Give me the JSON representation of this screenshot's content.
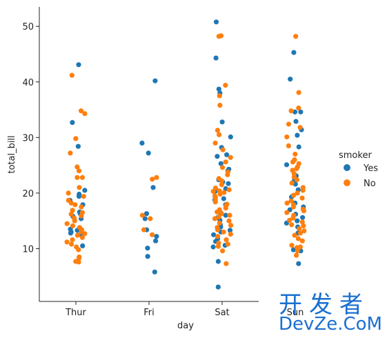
{
  "chart_data": {
    "type": "scatter",
    "subtype": "strip",
    "xlabel": "day",
    "ylabel": "total_bill",
    "categories": [
      "Thur",
      "Fri",
      "Sat",
      "Sun"
    ],
    "ylim": [
      0.5,
      53.5
    ],
    "yticks": [
      10,
      20,
      30,
      40,
      50
    ],
    "grid": false,
    "legend": {
      "title": "smoker",
      "placement": "right"
    },
    "colors": {
      "Yes": "#1f77b4",
      "No": "#ff7f0e"
    },
    "series": [
      {
        "name": "Yes",
        "points": [
          [
            "Thur",
            43.1
          ],
          [
            "Thur",
            32.7
          ],
          [
            "Thur",
            28.4
          ],
          [
            "Thur",
            20.5
          ],
          [
            "Thur",
            19.8
          ],
          [
            "Thur",
            19.4
          ],
          [
            "Thur",
            18.7
          ],
          [
            "Thur",
            17.9
          ],
          [
            "Thur",
            16.6
          ],
          [
            "Thur",
            16.4
          ],
          [
            "Thur",
            16.3
          ],
          [
            "Thur",
            15.8
          ],
          [
            "Thur",
            15.4
          ],
          [
            "Thur",
            13.5
          ],
          [
            "Thur",
            13.3
          ],
          [
            "Thur",
            13.0
          ],
          [
            "Thur",
            12.8
          ],
          [
            "Thur",
            12.5
          ],
          [
            "Thur",
            10.5
          ],
          [
            "Fri",
            40.2
          ],
          [
            "Fri",
            29.0
          ],
          [
            "Fri",
            27.2
          ],
          [
            "Fri",
            21.0
          ],
          [
            "Fri",
            16.3
          ],
          [
            "Fri",
            15.4
          ],
          [
            "Fri",
            13.4
          ],
          [
            "Fri",
            12.2
          ],
          [
            "Fri",
            11.4
          ],
          [
            "Fri",
            10.1
          ],
          [
            "Fri",
            8.6
          ],
          [
            "Fri",
            5.8
          ],
          [
            "Sat",
            50.8
          ],
          [
            "Sat",
            44.3
          ],
          [
            "Sat",
            38.7
          ],
          [
            "Sat",
            38.0
          ],
          [
            "Sat",
            32.8
          ],
          [
            "Sat",
            30.1
          ],
          [
            "Sat",
            28.2
          ],
          [
            "Sat",
            26.9
          ],
          [
            "Sat",
            26.6
          ],
          [
            "Sat",
            25.3
          ],
          [
            "Sat",
            24.3
          ],
          [
            "Sat",
            24.0
          ],
          [
            "Sat",
            22.4
          ],
          [
            "Sat",
            22.0
          ],
          [
            "Sat",
            21.7
          ],
          [
            "Sat",
            20.8
          ],
          [
            "Sat",
            20.3
          ],
          [
            "Sat",
            19.0
          ],
          [
            "Sat",
            18.8
          ],
          [
            "Sat",
            17.9
          ],
          [
            "Sat",
            16.5
          ],
          [
            "Sat",
            16.0
          ],
          [
            "Sat",
            15.6
          ],
          [
            "Sat",
            15.1
          ],
          [
            "Sat",
            14.3
          ],
          [
            "Sat",
            13.9
          ],
          [
            "Sat",
            13.3
          ],
          [
            "Sat",
            13.0
          ],
          [
            "Sat",
            12.5
          ],
          [
            "Sat",
            11.8
          ],
          [
            "Sat",
            11.3
          ],
          [
            "Sat",
            10.6
          ],
          [
            "Sat",
            10.3
          ],
          [
            "Sat",
            7.7
          ],
          [
            "Sat",
            3.1
          ],
          [
            "Sun",
            45.3
          ],
          [
            "Sun",
            40.5
          ],
          [
            "Sun",
            34.6
          ],
          [
            "Sun",
            34.6
          ],
          [
            "Sun",
            32.9
          ],
          [
            "Sun",
            31.4
          ],
          [
            "Sun",
            30.4
          ],
          [
            "Sun",
            28.3
          ],
          [
            "Sun",
            25.1
          ],
          [
            "Sun",
            23.1
          ],
          [
            "Sun",
            22.3
          ],
          [
            "Sun",
            21.6
          ],
          [
            "Sun",
            20.6
          ],
          [
            "Sun",
            19.3
          ],
          [
            "Sun",
            18.2
          ],
          [
            "Sun",
            17.5
          ],
          [
            "Sun",
            17.0
          ],
          [
            "Sun",
            16.2
          ],
          [
            "Sun",
            15.6
          ],
          [
            "Sun",
            15.0
          ],
          [
            "Sun",
            14.6
          ],
          [
            "Sun",
            13.9
          ],
          [
            "Sun",
            12.8
          ],
          [
            "Sun",
            9.8
          ],
          [
            "Sun",
            9.6
          ],
          [
            "Sun",
            7.3
          ]
        ]
      },
      {
        "name": "No",
        "points": [
          [
            "Thur",
            41.2
          ],
          [
            "Thur",
            34.8
          ],
          [
            "Thur",
            34.3
          ],
          [
            "Thur",
            29.8
          ],
          [
            "Thur",
            27.2
          ],
          [
            "Thur",
            24.7
          ],
          [
            "Thur",
            24.0
          ],
          [
            "Thur",
            22.8
          ],
          [
            "Thur",
            22.8
          ],
          [
            "Thur",
            21.0
          ],
          [
            "Thur",
            20.0
          ],
          [
            "Thur",
            19.4
          ],
          [
            "Thur",
            18.7
          ],
          [
            "Thur",
            18.2
          ],
          [
            "Thur",
            17.9
          ],
          [
            "Thur",
            17.5
          ],
          [
            "Thur",
            16.9
          ],
          [
            "Thur",
            16.5
          ],
          [
            "Thur",
            16.2
          ],
          [
            "Thur",
            15.9
          ],
          [
            "Thur",
            15.5
          ],
          [
            "Thur",
            15.0
          ],
          [
            "Thur",
            14.5
          ],
          [
            "Thur",
            14.1
          ],
          [
            "Thur",
            13.8
          ],
          [
            "Thur",
            13.4
          ],
          [
            "Thur",
            13.0
          ],
          [
            "Thur",
            12.7
          ],
          [
            "Thur",
            12.4
          ],
          [
            "Thur",
            12.0
          ],
          [
            "Thur",
            11.6
          ],
          [
            "Thur",
            11.2
          ],
          [
            "Thur",
            10.8
          ],
          [
            "Thur",
            10.3
          ],
          [
            "Thur",
            9.8
          ],
          [
            "Thur",
            8.5
          ],
          [
            "Thur",
            8.3
          ],
          [
            "Thur",
            7.7
          ],
          [
            "Thur",
            7.6
          ],
          [
            "Fri",
            22.8
          ],
          [
            "Fri",
            22.5
          ],
          [
            "Fri",
            16.0
          ],
          [
            "Fri",
            15.4
          ],
          [
            "Fri",
            13.4
          ],
          [
            "Fri",
            12.5
          ],
          [
            "Sat",
            48.3
          ],
          [
            "Sat",
            48.2
          ],
          [
            "Sat",
            39.4
          ],
          [
            "Sat",
            37.5
          ],
          [
            "Sat",
            35.8
          ],
          [
            "Sat",
            31.3
          ],
          [
            "Sat",
            30.5
          ],
          [
            "Sat",
            29.0
          ],
          [
            "Sat",
            27.8
          ],
          [
            "Sat",
            26.4
          ],
          [
            "Sat",
            25.6
          ],
          [
            "Sat",
            24.6
          ],
          [
            "Sat",
            23.8
          ],
          [
            "Sat",
            23.3
          ],
          [
            "Sat",
            22.6
          ],
          [
            "Sat",
            22.2
          ],
          [
            "Sat",
            21.5
          ],
          [
            "Sat",
            20.9
          ],
          [
            "Sat",
            20.6
          ],
          [
            "Sat",
            20.4
          ],
          [
            "Sat",
            20.3
          ],
          [
            "Sat",
            20.1
          ],
          [
            "Sat",
            19.8
          ],
          [
            "Sat",
            19.5
          ],
          [
            "Sat",
            19.2
          ],
          [
            "Sat",
            18.8
          ],
          [
            "Sat",
            18.4
          ],
          [
            "Sat",
            18.0
          ],
          [
            "Sat",
            17.7
          ],
          [
            "Sat",
            17.3
          ],
          [
            "Sat",
            17.0
          ],
          [
            "Sat",
            16.6
          ],
          [
            "Sat",
            16.3
          ],
          [
            "Sat",
            16.0
          ],
          [
            "Sat",
            15.7
          ],
          [
            "Sat",
            15.4
          ],
          [
            "Sat",
            15.0
          ],
          [
            "Sat",
            14.6
          ],
          [
            "Sat",
            14.2
          ],
          [
            "Sat",
            13.8
          ],
          [
            "Sat",
            13.4
          ],
          [
            "Sat",
            13.0
          ],
          [
            "Sat",
            12.6
          ],
          [
            "Sat",
            12.2
          ],
          [
            "Sat",
            11.6
          ],
          [
            "Sat",
            11.0
          ],
          [
            "Sat",
            10.8
          ],
          [
            "Sat",
            10.4
          ],
          [
            "Sat",
            9.6
          ],
          [
            "Sat",
            7.3
          ],
          [
            "Sun",
            48.2
          ],
          [
            "Sun",
            38.1
          ],
          [
            "Sun",
            35.3
          ],
          [
            "Sun",
            34.8
          ],
          [
            "Sun",
            32.4
          ],
          [
            "Sun",
            31.8
          ],
          [
            "Sun",
            30.1
          ],
          [
            "Sun",
            28.5
          ],
          [
            "Sun",
            27.0
          ],
          [
            "Sun",
            26.0
          ],
          [
            "Sun",
            25.6
          ],
          [
            "Sun",
            25.3
          ],
          [
            "Sun",
            24.7
          ],
          [
            "Sun",
            24.4
          ],
          [
            "Sun",
            24.1
          ],
          [
            "Sun",
            23.5
          ],
          [
            "Sun",
            22.9
          ],
          [
            "Sun",
            22.4
          ],
          [
            "Sun",
            21.8
          ],
          [
            "Sun",
            21.0
          ],
          [
            "Sun",
            20.5
          ],
          [
            "Sun",
            20.0
          ],
          [
            "Sun",
            19.6
          ],
          [
            "Sun",
            19.1
          ],
          [
            "Sun",
            18.6
          ],
          [
            "Sun",
            18.2
          ],
          [
            "Sun",
            17.9
          ],
          [
            "Sun",
            17.5
          ],
          [
            "Sun",
            17.1
          ],
          [
            "Sun",
            16.8
          ],
          [
            "Sun",
            16.5
          ],
          [
            "Sun",
            16.0
          ],
          [
            "Sun",
            15.5
          ],
          [
            "Sun",
            15.1
          ],
          [
            "Sun",
            14.8
          ],
          [
            "Sun",
            14.3
          ],
          [
            "Sun",
            14.1
          ],
          [
            "Sun",
            13.6
          ],
          [
            "Sun",
            13.2
          ],
          [
            "Sun",
            12.8
          ],
          [
            "Sun",
            12.4
          ],
          [
            "Sun",
            11.8
          ],
          [
            "Sun",
            11.4
          ],
          [
            "Sun",
            10.6
          ],
          [
            "Sun",
            10.3
          ],
          [
            "Sun",
            10.2
          ],
          [
            "Sun",
            9.6
          ],
          [
            "Sun",
            8.8
          ]
        ]
      }
    ]
  },
  "watermark": {
    "line1": "开发者",
    "line2": "DevZe.CoM"
  }
}
